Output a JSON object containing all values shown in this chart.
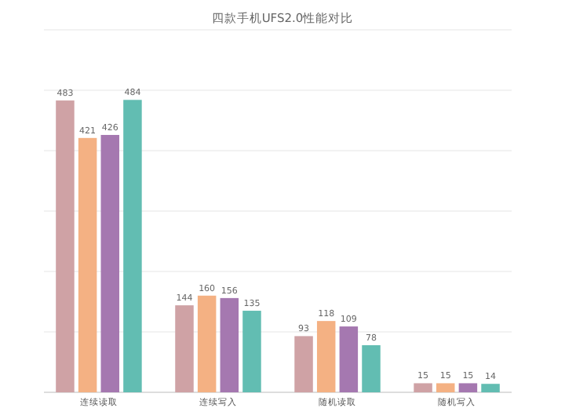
{
  "chart_data": {
    "type": "bar",
    "title": "四款手机UFS2.0性能对比",
    "categories": [
      "连续读取",
      "连续写入",
      "随机读取",
      "随机写入"
    ],
    "series": [
      {
        "color": "#cfa2a5",
        "values": [
          483,
          144,
          93,
          15
        ]
      },
      {
        "color": "#f4b183",
        "values": [
          421,
          160,
          118,
          15
        ]
      },
      {
        "color": "#a578b0",
        "values": [
          426,
          156,
          109,
          15
        ]
      },
      {
        "color": "#62bdb2",
        "values": [
          484,
          135,
          78,
          14
        ]
      }
    ],
    "ylim": [
      0,
      600
    ],
    "yticks": [
      {
        "value": 0,
        "label": null
      },
      {
        "value": 100,
        "label": null
      },
      {
        "value": 200,
        "label": null
      },
      {
        "value": 300,
        "label": null
      },
      {
        "value": 400,
        "label": null
      },
      {
        "value": 500,
        "label": null
      },
      {
        "value": 600,
        "label": null
      }
    ],
    "tick_labels": "x",
    "grid": "y",
    "data_labels": true
  }
}
